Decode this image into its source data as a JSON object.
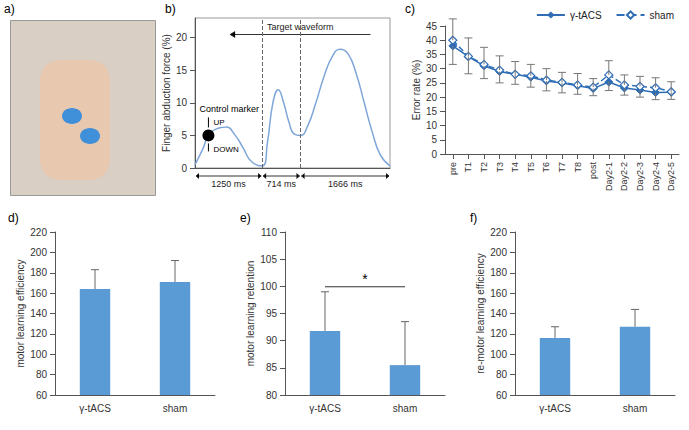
{
  "chart_data": [
    {
      "label": "a)",
      "type": "image"
    },
    {
      "label": "b)",
      "type": "line",
      "ylabel": "Finger abduction force (%)",
      "x": [
        0,
        150,
        250,
        400,
        570,
        750,
        900,
        1050,
        1250,
        1350,
        1450,
        1550,
        1650,
        1750,
        1850,
        1964,
        2100,
        2250,
        2400,
        2550,
        2700,
        2850,
        3000,
        3150,
        3300,
        3450,
        3630
      ],
      "values": [
        0.5,
        3,
        5,
        6,
        6.3,
        5,
        3,
        1,
        0.3,
        4,
        10,
        12,
        10,
        7,
        5.2,
        5,
        6.5,
        10,
        14,
        17,
        18.2,
        17.5,
        14.5,
        10,
        5.5,
        2,
        0.3
      ],
      "color": "#7ea6d8",
      "xlim": [
        0,
        3630
      ],
      "ylim": [
        0,
        23
      ],
      "yticks": [
        0,
        5,
        10,
        15,
        20
      ],
      "tick_labels": "y",
      "dividers": [
        1250,
        1964
      ],
      "segments": [
        {
          "label": "1250 ms",
          "start": 0,
          "end": 1250
        },
        {
          "label": "714 ms",
          "start": 1250,
          "end": 1964
        },
        {
          "label": "1666 ms",
          "start": 1964,
          "end": 3630
        }
      ],
      "control_marker": {
        "label": "Control marker",
        "x": 250,
        "y": 5,
        "up": "UP",
        "down": "DOWN"
      },
      "arrow_label": "Target waveform"
    },
    {
      "label": "c)",
      "type": "line",
      "ylabel": "Error rate (%)",
      "categories": [
        "pre",
        "T1",
        "T2",
        "T3",
        "T4",
        "T5",
        "T6",
        "T7",
        "T8",
        "post",
        "Day2-1",
        "Day2-2",
        "Day2-3",
        "Day2-4",
        "Day2-5"
      ],
      "ylim": [
        0,
        45
      ],
      "yticks": [
        0,
        5,
        10,
        15,
        20,
        25,
        30,
        35,
        40,
        45
      ],
      "legend": "top-right",
      "series": [
        {
          "name": "γ-tACS",
          "color": "#2f6db5",
          "marker": "diamond",
          "line_style": "solid",
          "values": [
            38,
            34.2,
            31,
            29,
            28,
            27,
            25.7,
            25,
            24,
            23,
            25.3,
            23.2,
            22.5,
            21.6,
            21.7
          ],
          "errors_lower": [
            6.5,
            6,
            4.5,
            4,
            3.5,
            3.5,
            3.5,
            3.5,
            3,
            2.5,
            3,
            2.5,
            2.5,
            2.5,
            2.5
          ]
        },
        {
          "name": "sham",
          "color": "#2f6db5",
          "marker": "diamond-open",
          "line_style": "dashed",
          "values": [
            40,
            34.3,
            31.5,
            29.5,
            28,
            27.5,
            26,
            25.2,
            24.3,
            23.5,
            27.8,
            24.3,
            23.8,
            23.3,
            21.9
          ],
          "errors_upper": [
            7.5,
            6.5,
            6,
            5,
            4.5,
            4,
            4,
            3.5,
            4,
            3,
            5,
            3.5,
            3.5,
            3.5,
            3.5
          ]
        }
      ]
    },
    {
      "label": "d)",
      "type": "bar",
      "ylabel": "motor learning efficiency",
      "categories": [
        "γ-tACS",
        "sham"
      ],
      "values": [
        164,
        171
      ],
      "errors": [
        19,
        21
      ],
      "color": "#5b9bd5",
      "ylim": [
        60,
        220
      ],
      "yticks": [
        60,
        80,
        100,
        120,
        140,
        160,
        180,
        200,
        220
      ]
    },
    {
      "label": "e)",
      "type": "bar",
      "ylabel": "motor learning retention",
      "categories": [
        "γ-tACS",
        "sham"
      ],
      "values": [
        91.8,
        85.5
      ],
      "errors": [
        7.2,
        8
      ],
      "color": "#5b9bd5",
      "ylim": [
        80,
        110
      ],
      "yticks": [
        80,
        85,
        90,
        95,
        100,
        105,
        110
      ],
      "significance": {
        "from": 0,
        "to": 1,
        "label": "*"
      }
    },
    {
      "label": "f)",
      "type": "bar",
      "ylabel": "re-motor learning efficiency",
      "categories": [
        "γ-tACS",
        "sham"
      ],
      "values": [
        116,
        127
      ],
      "errors": [
        11,
        17
      ],
      "color": "#5b9bd5",
      "ylim": [
        60,
        220
      ],
      "yticks": [
        60,
        80,
        100,
        120,
        140,
        160,
        180,
        200,
        220
      ]
    }
  ]
}
